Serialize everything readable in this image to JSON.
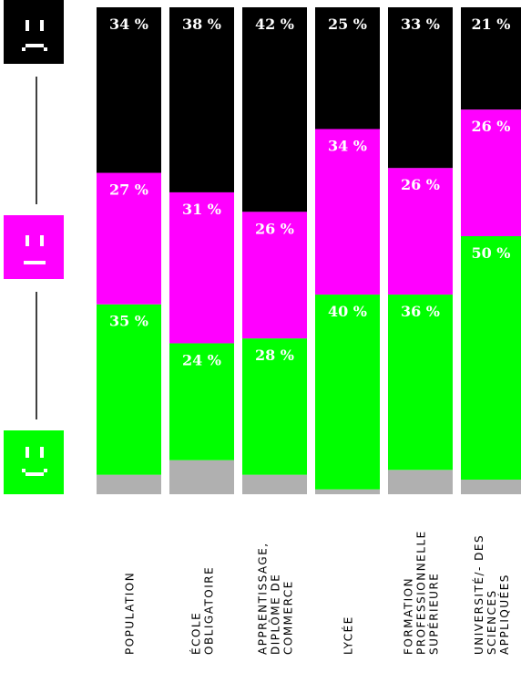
{
  "chart_data": {
    "type": "stacked-bar",
    "categories": [
      [
        "POPULATION"
      ],
      [
        "ÉCOLE",
        "OBLIGATOIRE"
      ],
      [
        "APPRENTISSAGE,",
        "DIPLÔME DE",
        "COMMERCE"
      ],
      [
        "LYCÉE"
      ],
      [
        "FORMATION",
        "PROFESSIONNELLE",
        "SUPÉRIEURE"
      ],
      [
        "UNIVERSITÉ/- DES",
        "SCIENCES",
        "APPLIQUÉES"
      ]
    ],
    "series": [
      {
        "color": "#b0b0b0",
        "values": [
          4,
          7,
          4,
          1,
          5,
          3
        ]
      },
      {
        "color": "#00ff00",
        "values": [
          35,
          24,
          28,
          40,
          36,
          50
        ],
        "value_labels": [
          "35 %",
          "24 %",
          "28 %",
          "40 %",
          "36 %",
          "50 %"
        ]
      },
      {
        "color": "#ff00ff",
        "values": [
          27,
          31,
          26,
          34,
          26,
          26
        ],
        "value_labels": [
          "27 %",
          "31 %",
          "26 %",
          "34 %",
          "26 %",
          "26 %"
        ]
      },
      {
        "color": "#000000",
        "values": [
          34,
          38,
          42,
          25,
          33,
          21
        ],
        "value_labels": [
          "34 %",
          "38 %",
          "42 %",
          "25 %",
          "33 %",
          "21 %"
        ]
      }
    ]
  }
}
